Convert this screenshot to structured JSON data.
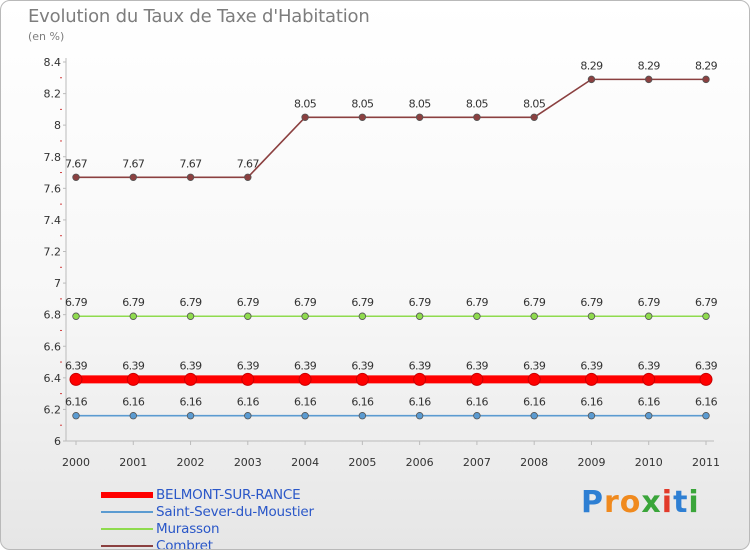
{
  "title": "Evolution du Taux de Taxe d'Habitation",
  "unit_label": "(en %)",
  "brand": {
    "letters": [
      "P",
      "r",
      "o",
      "x",
      "i",
      "t",
      "i"
    ],
    "colors": [
      "#2e7fd3",
      "#f08a1e",
      "#f08a1e",
      "#3aa53a",
      "#e23a2a",
      "#2e7fd3",
      "#3aa53a"
    ]
  },
  "chart_data": {
    "type": "line",
    "title": "Evolution du Taux de Taxe d'Habitation",
    "ylabel": "(en %)",
    "xlabel": "",
    "x": [
      "2000",
      "2001",
      "2002",
      "2003",
      "2004",
      "2005",
      "2006",
      "2007",
      "2008",
      "2009",
      "2010",
      "2011"
    ],
    "ylim": [
      6,
      8.4
    ],
    "yticks": [
      6,
      6.2,
      6.4,
      6.6,
      6.8,
      7,
      7.2,
      7.4,
      7.6,
      7.8,
      8,
      8.2,
      8.4
    ],
    "ytick_labels": [
      "6",
      "6.2",
      "6.4",
      "6.6",
      "6.8",
      "7",
      "7.2",
      "7.4",
      "7.6",
      "7.8",
      "8",
      "8.2",
      "8.4"
    ],
    "grid": false,
    "legend_position": "bottom-left",
    "series": [
      {
        "name": "BELMONT-SUR-RANCE",
        "color": "#ff0000",
        "emphasis": true,
        "values": [
          6.39,
          6.39,
          6.39,
          6.39,
          6.39,
          6.39,
          6.39,
          6.39,
          6.39,
          6.39,
          6.39,
          6.39
        ],
        "labels": [
          "6.39",
          "6.39",
          "6.39",
          "6.39",
          "6.39",
          "6.39",
          "6.39",
          "6.39",
          "6.39",
          "6.39",
          "6.39",
          "6.39"
        ]
      },
      {
        "name": "Saint-Sever-du-Moustier",
        "color": "#5b9bd1",
        "emphasis": false,
        "values": [
          6.16,
          6.16,
          6.16,
          6.16,
          6.16,
          6.16,
          6.16,
          6.16,
          6.16,
          6.16,
          6.16,
          6.16
        ],
        "labels": [
          "6.16",
          "6.16",
          "6.16",
          "6.16",
          "6.16",
          "6.16",
          "6.16",
          "6.16",
          "6.16",
          "6.16",
          "6.16",
          "6.16"
        ]
      },
      {
        "name": "Murasson",
        "color": "#8fdb4e",
        "emphasis": false,
        "values": [
          6.79,
          6.79,
          6.79,
          6.79,
          6.79,
          6.79,
          6.79,
          6.79,
          6.79,
          6.79,
          6.79,
          6.79
        ],
        "labels": [
          "6.79",
          "6.79",
          "6.79",
          "6.79",
          "6.79",
          "6.79",
          "6.79",
          "6.79",
          "6.79",
          "6.79",
          "6.79",
          "6.79"
        ]
      },
      {
        "name": "Combret",
        "color": "#8b4040",
        "emphasis": false,
        "values": [
          7.67,
          7.67,
          7.67,
          7.67,
          8.05,
          8.05,
          8.05,
          8.05,
          8.05,
          8.29,
          8.29,
          8.29
        ],
        "labels": [
          "7.67",
          "7.67",
          "7.67",
          "7.67",
          "8.05",
          "8.05",
          "8.05",
          "8.05",
          "8.05",
          "8.29",
          "8.29",
          "8.29"
        ]
      }
    ]
  }
}
